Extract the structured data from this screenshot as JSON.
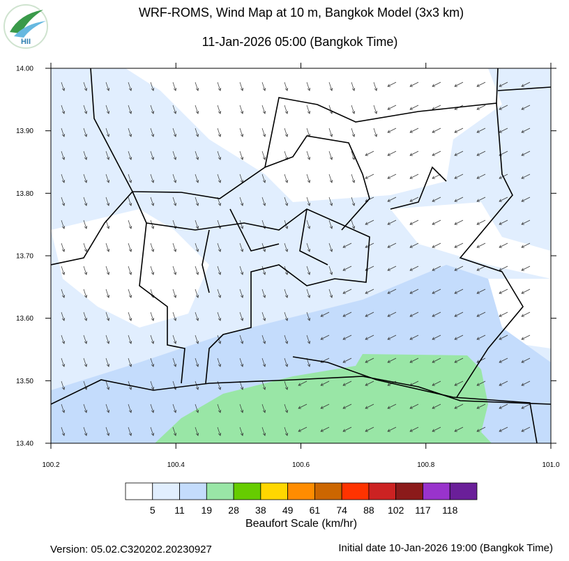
{
  "map": {
    "logo": "HII",
    "title": "WRF-ROMS, Wind Map at 10 m, Bangkok Model (3x3 km)",
    "subtitle": "11-Jan-2026 05:00 (Bangkok Time)",
    "xlim": [
      100.2,
      101
    ],
    "ylim": [
      13.4,
      14
    ],
    "xticks": [
      100.2,
      100.4,
      100.6,
      100.8,
      {
        "value": 101,
        "label": "101.0"
      }
    ],
    "yticks": [
      {
        "value": 14,
        "label": "14.00"
      },
      {
        "value": 13.9,
        "label": "13.90"
      },
      {
        "value": 13.8,
        "label": "13.80"
      },
      {
        "value": 13.7,
        "label": "13.70"
      },
      {
        "value": 13.6,
        "label": "13.60"
      },
      {
        "value": 13.5,
        "label": "13.50"
      },
      {
        "value": 13.4,
        "label": "13.40"
      }
    ],
    "colorbar": {
      "colors": [
        "#ffffff",
        "#e1eefe",
        "#c4dcfc",
        "#99e6a6",
        "#66cc00",
        "#ffd700",
        "#ff8c00",
        "#cc6600",
        "#ff3300",
        "#cc2222",
        "#8b1a1a",
        "#9933cc",
        "#6a1f99"
      ],
      "labels": [
        5,
        11,
        19,
        28,
        38,
        49,
        61,
        74,
        88,
        102,
        117,
        118
      ],
      "title": "Beaufort Scale (km/hr)"
    },
    "version": "Version: 05.02.C320202.20230927",
    "initial_date": "Initial date 10-Jan-2026 19:00 (Bangkok Time)"
  }
}
